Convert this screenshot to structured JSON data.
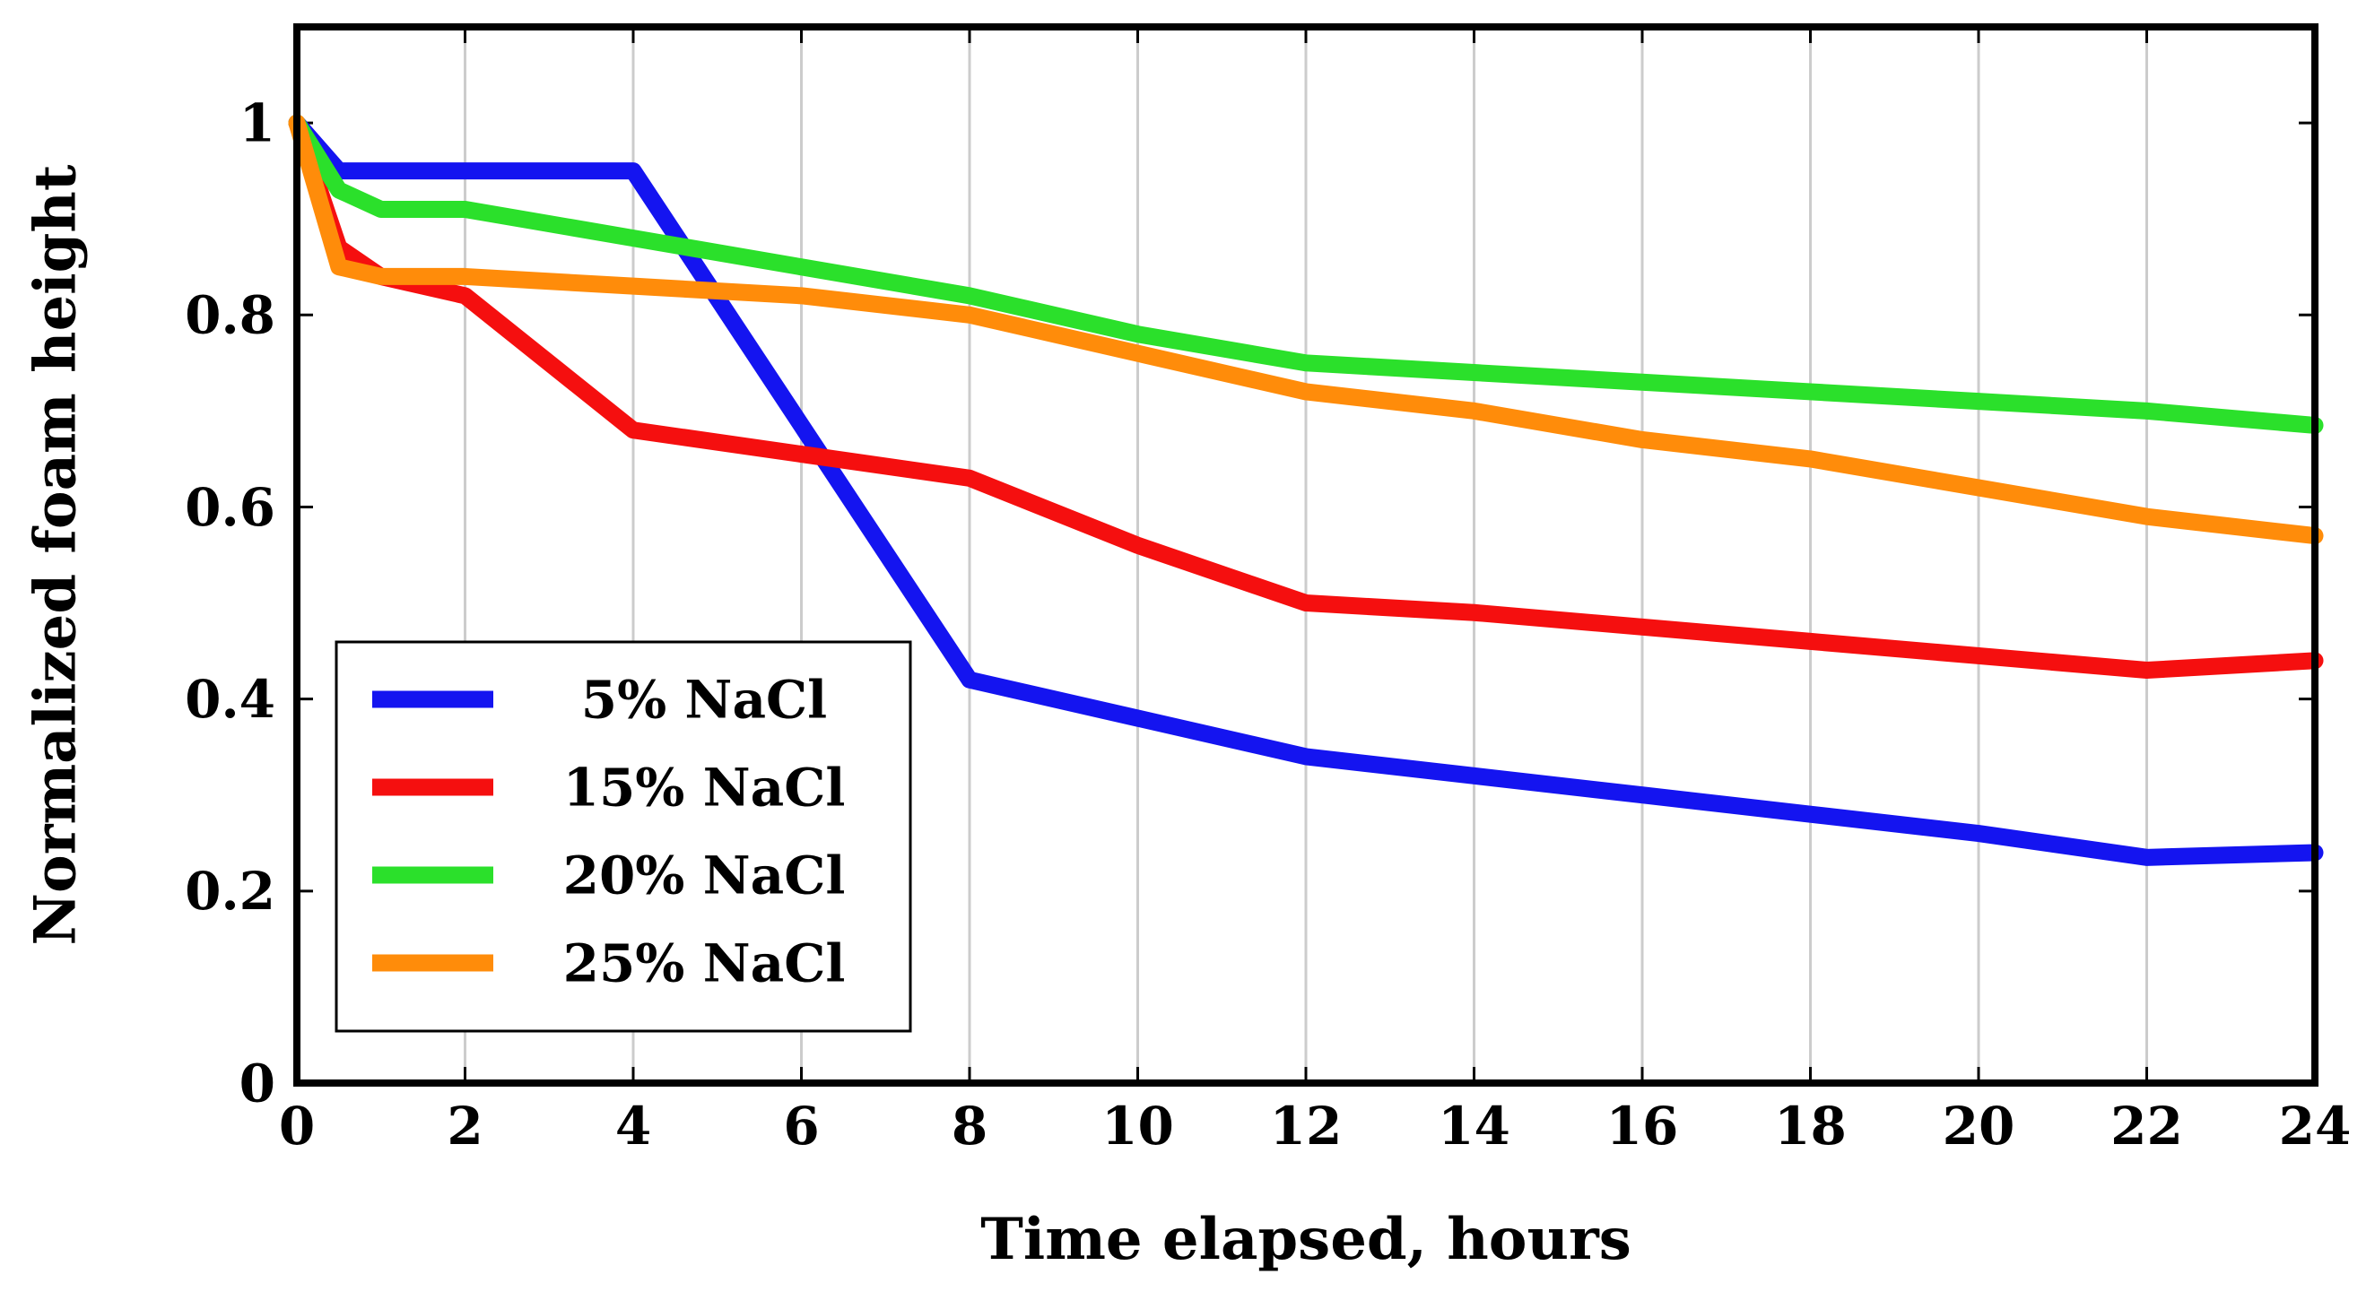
{
  "page": {
    "background": "#ffffff"
  },
  "chart_data": {
    "type": "line",
    "title": "",
    "xlabel": "Time elapsed, hours",
    "ylabel": "Normalized foam height",
    "xlim": [
      0,
      24
    ],
    "ylim": [
      0,
      1.1
    ],
    "xticks": [
      0,
      2,
      4,
      6,
      8,
      10,
      12,
      14,
      16,
      18,
      20,
      22,
      24
    ],
    "yticks": [
      0,
      0.2,
      0.4,
      0.6,
      0.8,
      1
    ],
    "grid": "vertical-only",
    "grid_color": "#cccccc",
    "frame_color": "#000000",
    "legend": {
      "position": "bottom-left",
      "background": "#ffffff",
      "border_color": "#000000"
    },
    "x": [
      0,
      0.5,
      1,
      2,
      4,
      6,
      8,
      10,
      12,
      14,
      16,
      18,
      20,
      22,
      24
    ],
    "series": [
      {
        "name": "5% NaCl",
        "color": "#1414f0",
        "values": [
          1.0,
          0.95,
          0.95,
          0.95,
          0.95,
          0.685,
          0.42,
          0.38,
          0.34,
          0.32,
          0.3,
          0.28,
          0.26,
          0.235,
          0.24
        ]
      },
      {
        "name": "15% NaCl",
        "color": "#f50f0f",
        "values": [
          1.0,
          0.87,
          0.84,
          0.82,
          0.68,
          0.655,
          0.63,
          0.56,
          0.5,
          0.49,
          0.475,
          0.46,
          0.445,
          0.43,
          0.44
        ]
      },
      {
        "name": "20% NaCl",
        "color": "#2be02b",
        "values": [
          1.0,
          0.93,
          0.91,
          0.91,
          0.88,
          0.85,
          0.82,
          0.78,
          0.75,
          0.74,
          0.73,
          0.72,
          0.71,
          0.7,
          0.685
        ]
      },
      {
        "name": "25% NaCl",
        "color": "#ff8c0a",
        "values": [
          1.0,
          0.85,
          0.84,
          0.84,
          0.83,
          0.82,
          0.8,
          0.76,
          0.72,
          0.7,
          0.67,
          0.65,
          0.62,
          0.59,
          0.57
        ]
      }
    ]
  }
}
